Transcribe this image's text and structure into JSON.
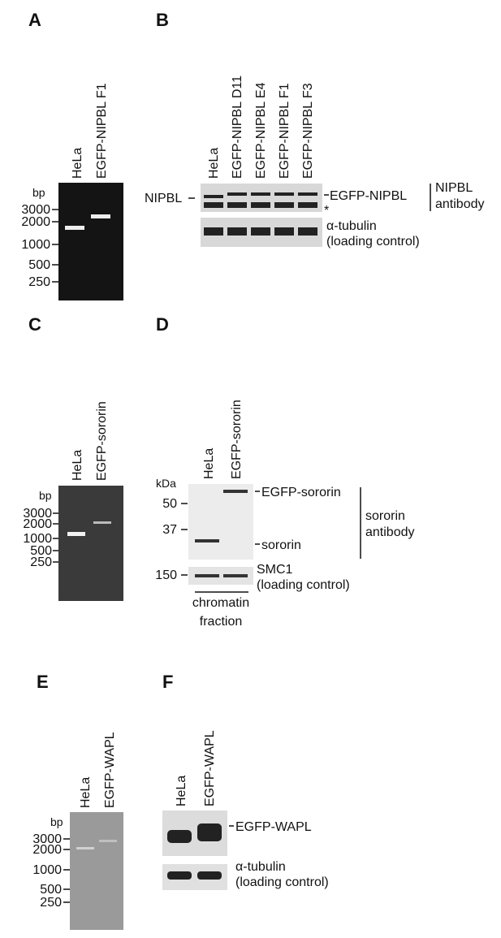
{
  "panels": {
    "A": {
      "label": "A",
      "lanes": [
        "HeLa",
        "EGFP-NIPBL F1"
      ],
      "unit": "bp",
      "ladder": [
        "3000",
        "2000",
        "1000",
        "500",
        "250"
      ]
    },
    "B": {
      "label": "B",
      "lanes": [
        "HeLa",
        "EGFP-NIPBL D11",
        "EGFP-NIPBL E4",
        "EGFP-NIPBL F1",
        "EGFP-NIPBL F3"
      ],
      "left_label": "NIPBL",
      "band_label": "EGFP-NIPBL",
      "nonspecific": "*",
      "antibody": [
        "NIPBL",
        "antibody"
      ],
      "control": [
        "α-tubulin",
        "(loading control)"
      ]
    },
    "C": {
      "label": "C",
      "lanes": [
        "HeLa",
        "EGFP-sororin"
      ],
      "unit": "bp",
      "ladder": [
        "3000",
        "2000",
        "1000",
        "500",
        "250"
      ]
    },
    "D": {
      "label": "D",
      "lanes": [
        "HeLa",
        "EGFP-sororin"
      ],
      "unit": "kDa",
      "markers": [
        "50",
        "37",
        "150"
      ],
      "bands": [
        "EGFP-sororin",
        "sororin"
      ],
      "antibody": [
        "sororin",
        "antibody"
      ],
      "control": [
        "SMC1",
        "(loading control)"
      ],
      "fraction": [
        "chromatin",
        "fraction"
      ]
    },
    "E": {
      "label": "E",
      "lanes": [
        "HeLa",
        "EGFP-WAPL"
      ],
      "unit": "bp",
      "ladder": [
        "3000",
        "2000",
        "1000",
        "500",
        "250"
      ]
    },
    "F": {
      "label": "F",
      "lanes": [
        "HeLa",
        "EGFP-WAPL"
      ],
      "band_label": "EGFP-WAPL",
      "control": [
        "α-tubulin",
        "(loading control)"
      ]
    }
  }
}
